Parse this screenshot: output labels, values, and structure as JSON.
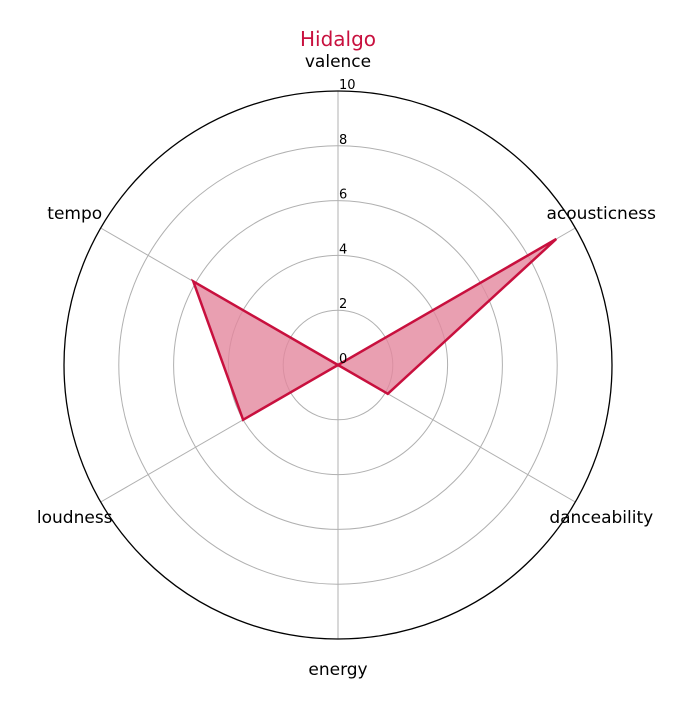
{
  "chart_data": {
    "type": "radar",
    "title": "Hidalgo",
    "axes": [
      "valence",
      "acousticness",
      "danceability",
      "energy",
      "loudness",
      "tempo"
    ],
    "series": [
      {
        "name": "Hidalgo",
        "values": [
          0,
          9.2,
          2.1,
          0,
          4.0,
          6.1
        ]
      }
    ],
    "rlim": [
      0,
      10
    ],
    "rticks": [
      "0",
      "2",
      "4",
      "6",
      "8",
      "10"
    ],
    "grid": true,
    "colors": {
      "series_line": "#c8103e",
      "series_fill": "#e3879e",
      "title": "#c8103e",
      "grid": "#b0b0b0",
      "outer_ring": "#000000"
    }
  }
}
